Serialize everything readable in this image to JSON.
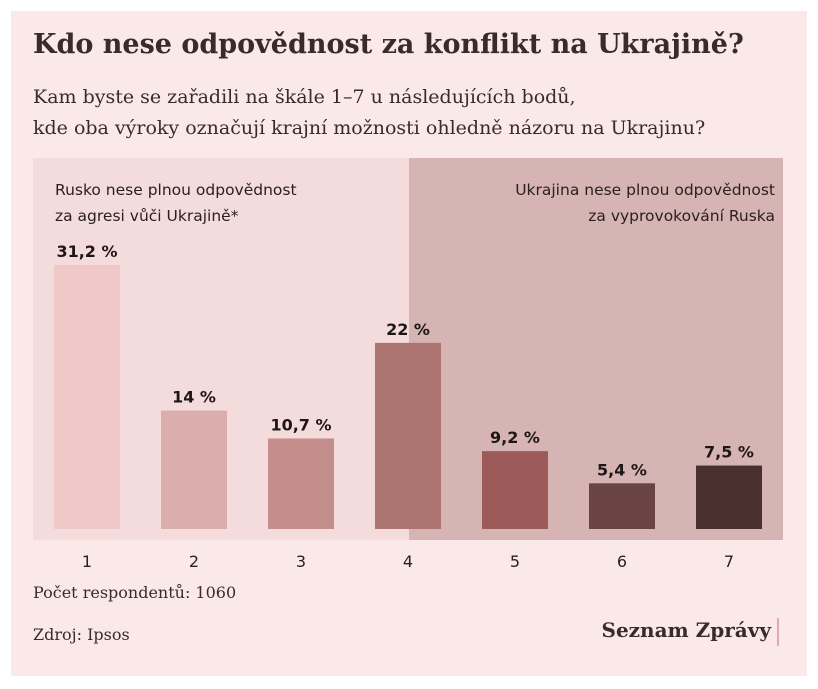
{
  "title": "Kdo nese odpovědnost za konflikt na Ukrajině?",
  "subtitle_line1": "Kam byste se zařadili na škále 1–7 u následujících bodů,",
  "subtitle_line2": "kde oba výroky označují krajní možnosti ohledně názoru na Ukrajinu?",
  "left_label_line1": "Rusko nese plnou odpovědnost",
  "left_label_line2": "za agresi vůči Ukrajině*",
  "right_label_line1": "Ukrajina nese plnou odpovědnost",
  "right_label_line2": "za vyprovokování Ruska",
  "respondents": "Počet respondentů: 1060",
  "source": "Zdroj: Ipsos",
  "brand": "Seznam Zprávy",
  "colors": {
    "background": "#fbe9e9",
    "left_panel": "#f5dcdc",
    "right_panel": "#d6b4b4",
    "brand_accent": "#e8a7a7"
  },
  "chart_data": {
    "type": "bar",
    "categories": [
      "1",
      "2",
      "3",
      "4",
      "5",
      "6",
      "7"
    ],
    "values": [
      31.2,
      14,
      10.7,
      22,
      9.2,
      5.4,
      7.5
    ],
    "value_labels": [
      "31,2 %",
      "14 %",
      "10,7 %",
      "22 %",
      "9,2 %",
      "5,4 %",
      "7,5 %"
    ],
    "bar_colors": [
      "#f0c8c8",
      "#d9aeac",
      "#c48e8c",
      "#ac7572",
      "#9c5a58",
      "#6a4444",
      "#4b3030"
    ],
    "ylim": [
      0,
      31.2
    ],
    "grid": false,
    "legend": "none"
  }
}
